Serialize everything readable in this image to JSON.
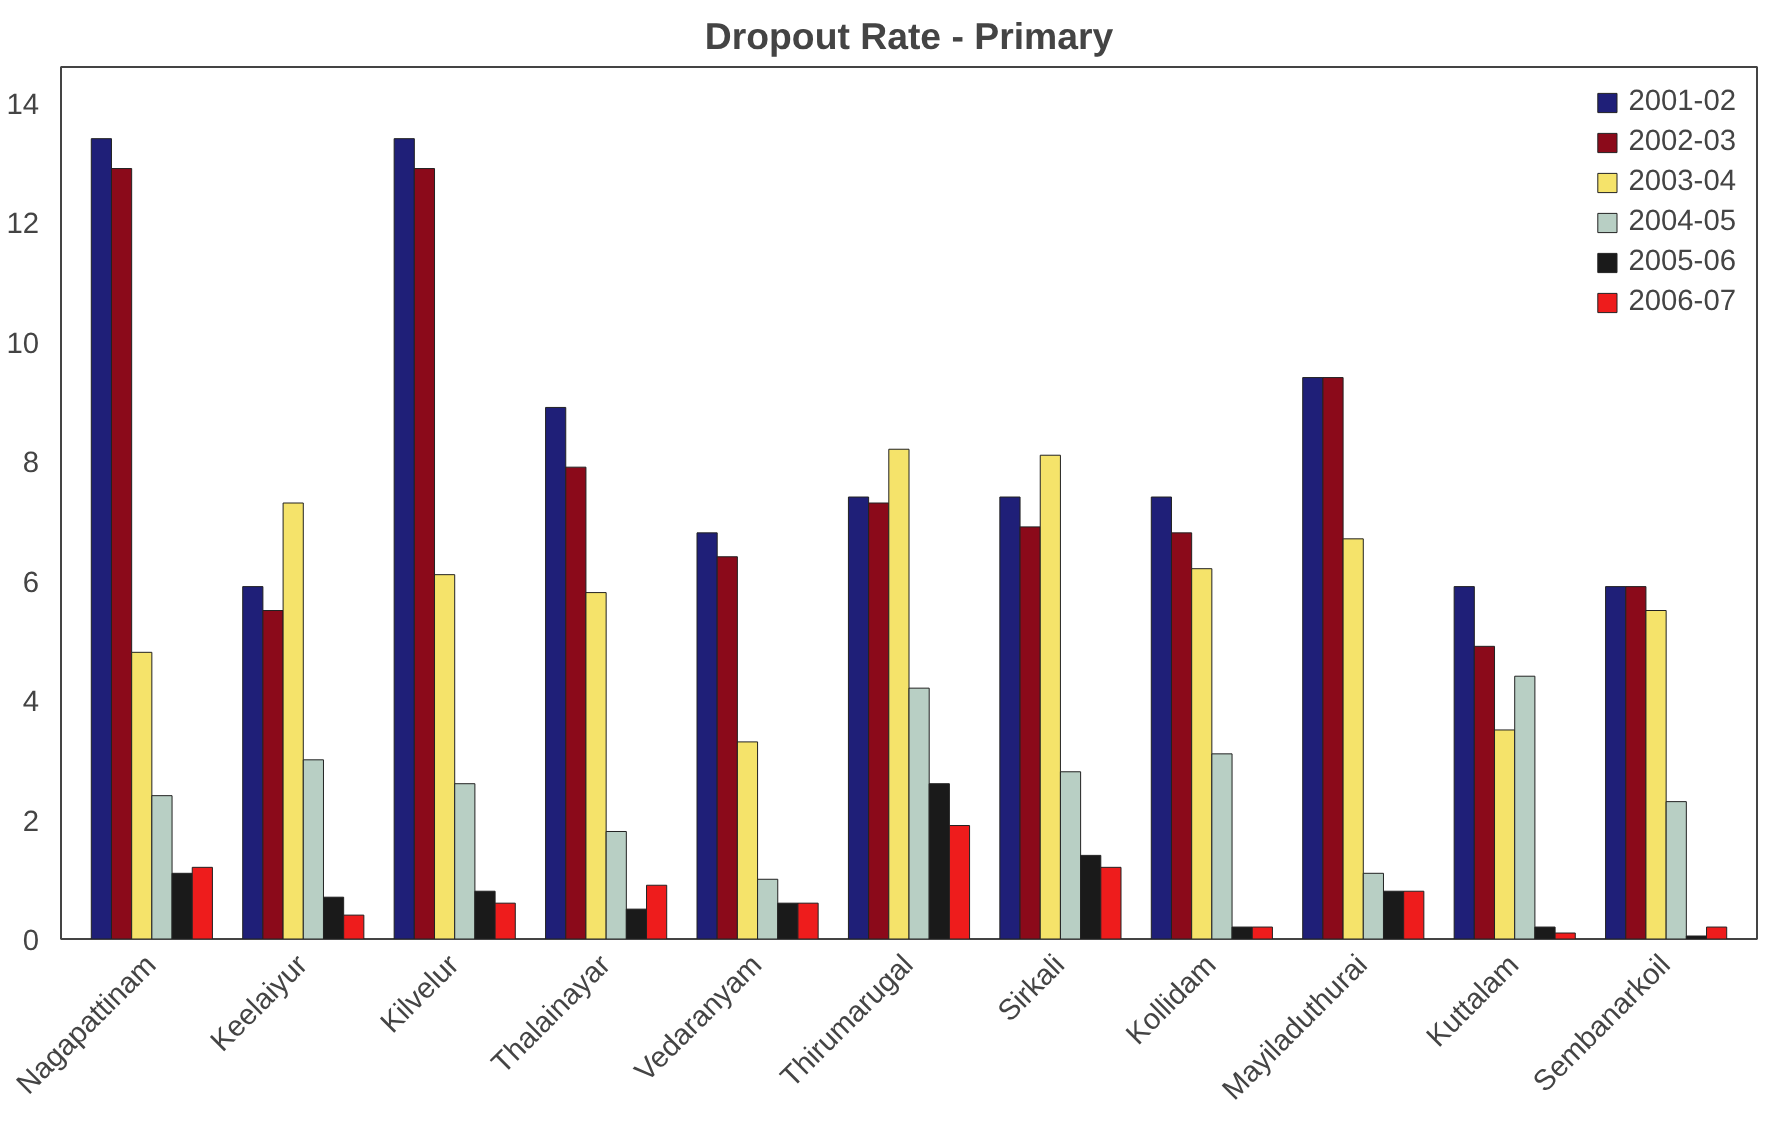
{
  "chart_data": {
    "type": "bar",
    "title": "Dropout Rate - Primary",
    "categories": [
      "Nagapattinam",
      "Keelaiyur",
      "Kilvelur",
      "Thalainayar",
      "Vedaranyam",
      "Thirumarugal",
      "Sirkali",
      "Kollidam",
      "Mayiladuthurai",
      "Kuttalam",
      "Sembanarkoil"
    ],
    "series": [
      {
        "name": "2001-02",
        "color": "#1f1f78",
        "values": [
          13.4,
          5.9,
          13.4,
          8.9,
          6.8,
          7.4,
          7.4,
          7.4,
          9.4,
          5.9,
          5.9
        ]
      },
      {
        "name": "2002-03",
        "color": "#8b0a1a",
        "values": [
          12.9,
          5.5,
          12.9,
          7.9,
          6.4,
          7.3,
          6.9,
          6.8,
          9.4,
          4.9,
          5.9
        ]
      },
      {
        "name": "2003-04",
        "color": "#f5e36a",
        "values": [
          4.8,
          7.3,
          6.1,
          5.8,
          3.3,
          8.2,
          8.1,
          6.2,
          6.7,
          3.5,
          5.5
        ]
      },
      {
        "name": "2004-05",
        "color": "#b8cfc4",
        "values": [
          2.4,
          3.0,
          2.6,
          1.8,
          1.0,
          4.2,
          2.8,
          3.1,
          1.1,
          4.4,
          2.3
        ]
      },
      {
        "name": "2005-06",
        "color": "#1a1a1a",
        "values": [
          1.1,
          0.7,
          0.8,
          0.5,
          0.6,
          2.6,
          1.4,
          0.2,
          0.8,
          0.2,
          0.05
        ]
      },
      {
        "name": "2006-07",
        "color": "#ee1c1c",
        "values": [
          1.2,
          0.4,
          0.6,
          0.9,
          0.6,
          1.9,
          1.2,
          0.2,
          0.8,
          0.1,
          0.2
        ]
      }
    ],
    "ylim": [
      0,
      14.6
    ],
    "yticks": [
      0,
      2,
      4,
      6,
      8,
      10,
      12,
      14
    ],
    "grid": false,
    "legend": "top right"
  }
}
